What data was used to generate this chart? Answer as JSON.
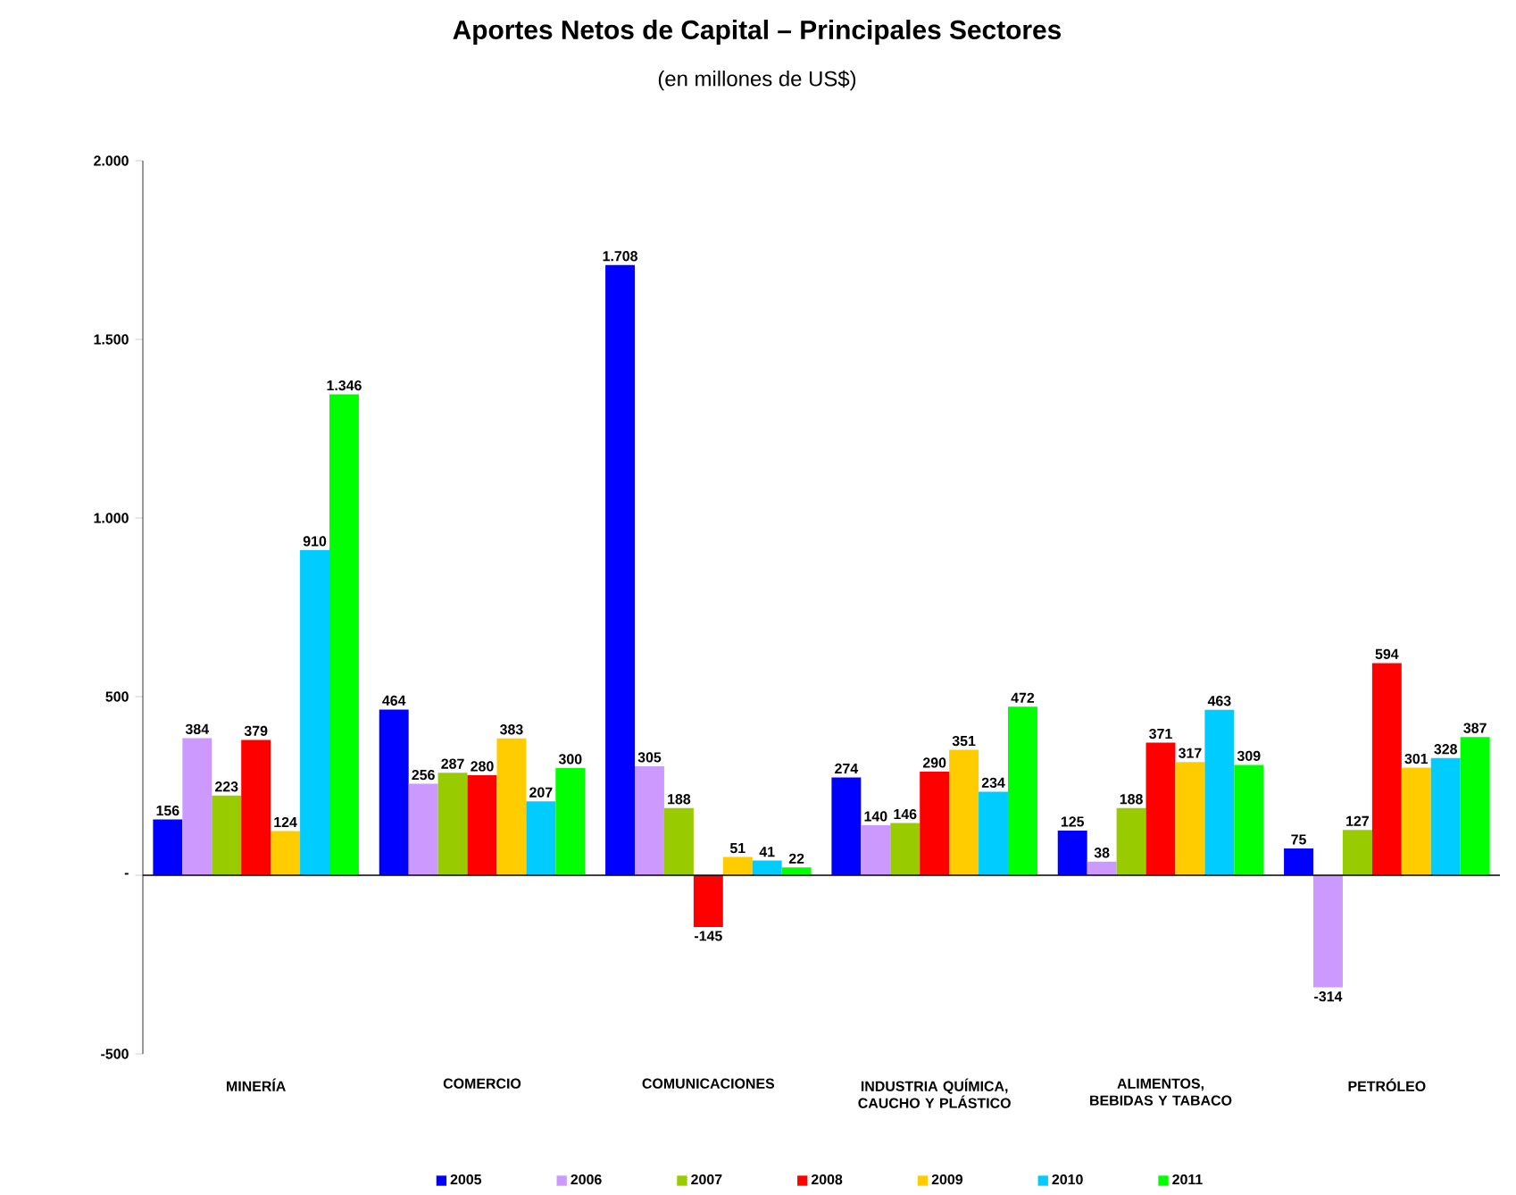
{
  "chart_data": {
    "type": "bar",
    "title": "Aportes Netos de Capital – Principales Sectores",
    "subtitle": "(en millones de US$)",
    "categories": [
      "MINERÍA",
      "COMERCIO",
      "COMUNICACIONES",
      "INDUSTRIA QUÍMICA, CAUCHO Y PLÁSTICO",
      "ALIMENTOS, BEBIDAS Y TABACO",
      "PETRÓLEO"
    ],
    "series": [
      {
        "name": "2005",
        "color": "#0000ff",
        "values": [
          156,
          464,
          1708,
          274,
          125,
          75
        ],
        "value_labels": [
          "156",
          "464",
          "1.708",
          "274",
          "125",
          "75"
        ]
      },
      {
        "name": "2006",
        "color": "#cc99ff",
        "values": [
          384,
          256,
          305,
          140,
          38,
          -314
        ],
        "value_labels": [
          "384",
          "256",
          "305",
          "140",
          "38",
          "-314"
        ]
      },
      {
        "name": "2007",
        "color": "#99cc00",
        "values": [
          223,
          287,
          188,
          146,
          188,
          127
        ],
        "value_labels": [
          "223",
          "287",
          "188",
          "146",
          "188",
          "127"
        ]
      },
      {
        "name": "2008",
        "color": "#ff0000",
        "values": [
          379,
          280,
          -145,
          290,
          371,
          594
        ],
        "value_labels": [
          "379",
          "280",
          "-145",
          "290",
          "371",
          "594"
        ]
      },
      {
        "name": "2009",
        "color": "#ffcc00",
        "values": [
          124,
          383,
          51,
          351,
          317,
          301
        ],
        "value_labels": [
          "124",
          "383",
          "51",
          "351",
          "317",
          "301"
        ]
      },
      {
        "name": "2010",
        "color": "#00ccff",
        "values": [
          910,
          207,
          41,
          234,
          463,
          328
        ],
        "value_labels": [
          "910",
          "207",
          "41",
          "234",
          "463",
          "328"
        ]
      },
      {
        "name": "2011",
        "color": "#00ff00",
        "values": [
          1346,
          300,
          22,
          472,
          309,
          387
        ],
        "value_labels": [
          "1.346",
          "300",
          "22",
          "472",
          "309",
          "387"
        ]
      }
    ],
    "ylim": [
      -500,
      2000
    ],
    "yticks": [
      {
        "value": -500,
        "label": "-500"
      },
      {
        "value": 0,
        "label": "-"
      },
      {
        "value": 500,
        "label": "500"
      },
      {
        "value": 1000,
        "label": "1.000"
      },
      {
        "value": 1500,
        "label": "1.500"
      },
      {
        "value": 2000,
        "label": "2.000"
      }
    ],
    "legend": "bottom"
  }
}
